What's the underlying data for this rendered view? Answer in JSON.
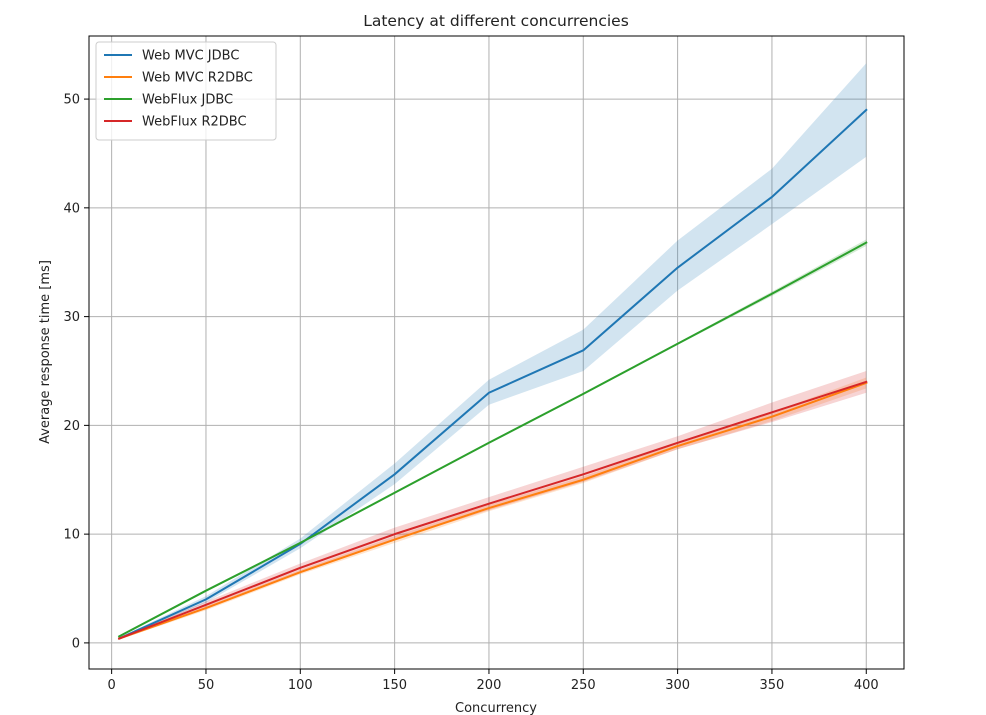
{
  "chart_data": {
    "type": "line",
    "title": "Latency at different concurrencies",
    "xlabel": "Concurrency",
    "ylabel": "Average response time [ms]",
    "xlim": [
      -12,
      420
    ],
    "ylim": [
      -2.4,
      55.8
    ],
    "xticks": [
      0,
      50,
      100,
      150,
      200,
      250,
      300,
      350,
      400
    ],
    "yticks": [
      0,
      10,
      20,
      30,
      40,
      50
    ],
    "grid": true,
    "legend_position": "top-left",
    "x": [
      4,
      50,
      100,
      150,
      200,
      250,
      300,
      350,
      400
    ],
    "series": [
      {
        "name": "Web MVC JDBC",
        "color": "#1f77b4",
        "values": [
          0.4,
          4.0,
          9.1,
          15.5,
          23.0,
          26.9,
          34.5,
          41.0,
          49.0
        ],
        "lower": [
          0.3,
          3.7,
          8.7,
          14.6,
          21.9,
          25.0,
          32.4,
          38.5,
          44.7
        ],
        "upper": [
          0.5,
          4.3,
          9.6,
          16.5,
          24.2,
          28.8,
          37.0,
          43.6,
          53.3
        ]
      },
      {
        "name": "Web MVC R2DBC",
        "color": "#ff7f0e",
        "values": [
          0.4,
          3.2,
          6.5,
          9.5,
          12.4,
          15.0,
          18.1,
          20.8,
          23.9
        ],
        "lower": [
          0.3,
          3.0,
          6.3,
          9.2,
          12.1,
          14.7,
          17.8,
          20.4,
          23.4
        ],
        "upper": [
          0.5,
          3.4,
          6.7,
          9.8,
          12.7,
          15.3,
          18.4,
          21.2,
          24.4
        ]
      },
      {
        "name": "WebFlux JDBC",
        "color": "#2ca02c",
        "values": [
          0.6,
          4.8,
          9.2,
          13.8,
          18.4,
          22.9,
          27.5,
          32.1,
          36.8
        ],
        "lower": [
          0.5,
          4.7,
          9.1,
          13.7,
          18.3,
          22.8,
          27.4,
          31.9,
          36.5
        ],
        "upper": [
          0.7,
          4.9,
          9.3,
          13.9,
          18.5,
          23.0,
          27.6,
          32.3,
          37.1
        ]
      },
      {
        "name": "WebFlux R2DBC",
        "color": "#d62728",
        "values": [
          0.4,
          3.5,
          6.9,
          10.0,
          12.8,
          15.5,
          18.4,
          21.2,
          24.0
        ],
        "lower": [
          0.3,
          3.2,
          6.5,
          9.5,
          12.2,
          14.8,
          17.8,
          20.3,
          23.0
        ],
        "upper": [
          0.5,
          3.8,
          7.3,
          10.6,
          13.4,
          16.2,
          19.0,
          22.1,
          25.0
        ]
      }
    ]
  }
}
